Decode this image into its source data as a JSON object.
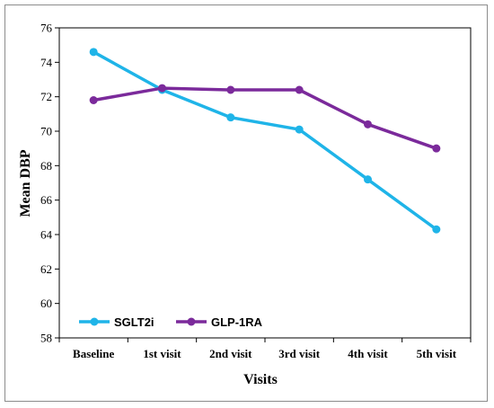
{
  "chart_data": {
    "type": "line",
    "categories": [
      "Baseline",
      "1st visit",
      "2nd visit",
      "3rd visit",
      "4th visit",
      "5th visit"
    ],
    "series": [
      {
        "name": "SGLT2i",
        "color": "#1fb4e8",
        "values": [
          74.6,
          72.4,
          70.8,
          70.1,
          67.2,
          64.3
        ]
      },
      {
        "name": "GLP-1RA",
        "color": "#7b2a9b",
        "values": [
          71.8,
          72.5,
          72.4,
          72.4,
          70.4,
          69.0
        ]
      }
    ],
    "xlabel": "Visits",
    "ylabel": "Mean DBP",
    "ylim": [
      58,
      76
    ],
    "yticks": [
      58,
      60,
      62,
      64,
      66,
      68,
      70,
      72,
      74,
      76
    ],
    "grid": false,
    "legend_position": "bottom-left"
  }
}
